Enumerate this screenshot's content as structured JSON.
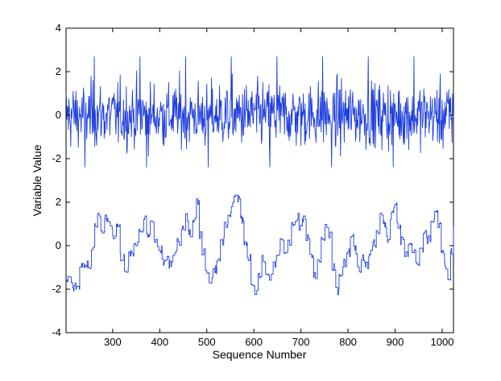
{
  "chart_data": {
    "type": "line",
    "title": "",
    "xlabel": "Sequence Number",
    "ylabel": "Variable Value",
    "xlim": [
      201,
      1024
    ],
    "ylim": [
      -4,
      4
    ],
    "x_ticks": [
      300,
      400,
      500,
      600,
      700,
      800,
      900,
      1000
    ],
    "y_ticks": [
      4,
      2,
      0,
      -2,
      2,
      0,
      -2,
      -4
    ],
    "grid": false,
    "legend": "none",
    "line_color": "#1f3fe0",
    "x": [
      201,
      1024
    ],
    "series": [
      {
        "kind": "noise",
        "offset": 0,
        "amplitude": 0.75,
        "clip": [
          -2.8,
          3.0
        ],
        "length": 824
      },
      {
        "kind": "piecewise-constant",
        "knots": [
          [
            201,
            -1.5
          ],
          [
            215,
            -1.9
          ],
          [
            230,
            -0.9
          ],
          [
            255,
            -0.2
          ],
          [
            262,
            1.0
          ],
          [
            268,
            1.4
          ],
          [
            275,
            0.6
          ],
          [
            283,
            1.3
          ],
          [
            292,
            0.9
          ],
          [
            300,
            0.4
          ],
          [
            308,
            0.8
          ],
          [
            316,
            -0.5
          ],
          [
            325,
            -1.1
          ],
          [
            334,
            -0.4
          ],
          [
            345,
            0.1
          ],
          [
            356,
            0.8
          ],
          [
            366,
            1.3
          ],
          [
            372,
            0.5
          ],
          [
            380,
            1.0
          ],
          [
            388,
            0.3
          ],
          [
            395,
            -0.2
          ],
          [
            405,
            -0.8
          ],
          [
            412,
            -0.6
          ],
          [
            420,
            -0.9
          ],
          [
            428,
            -0.4
          ],
          [
            437,
            0.2
          ],
          [
            446,
            0.9
          ],
          [
            455,
            1.3
          ],
          [
            461,
            0.6
          ],
          [
            470,
            1.1
          ],
          [
            478,
            2.0
          ],
          [
            484,
            0.5
          ],
          [
            490,
            -0.3
          ],
          [
            497,
            -1.1
          ],
          [
            505,
            -1.6
          ],
          [
            513,
            -1.1
          ],
          [
            521,
            -0.6
          ],
          [
            529,
            0.2
          ],
          [
            537,
            0.9
          ],
          [
            545,
            1.4
          ],
          [
            552,
            1.9
          ],
          [
            558,
            2.2
          ],
          [
            566,
            2.1
          ],
          [
            572,
            1.2
          ],
          [
            579,
            0.2
          ],
          [
            586,
            -0.6
          ],
          [
            594,
            -1.7
          ],
          [
            602,
            -2.2
          ],
          [
            609,
            -1.4
          ],
          [
            617,
            -0.6
          ],
          [
            625,
            -1.2
          ],
          [
            633,
            -1.5
          ],
          [
            641,
            -0.9
          ],
          [
            648,
            -0.3
          ],
          [
            656,
            0.3
          ],
          [
            664,
            -0.2
          ],
          [
            672,
            0.2
          ],
          [
            680,
            1.0
          ],
          [
            688,
            1.3
          ],
          [
            696,
            0.8
          ],
          [
            703,
            1.3
          ],
          [
            711,
            0.4
          ],
          [
            719,
            -0.5
          ],
          [
            727,
            -1.4
          ],
          [
            735,
            -0.7
          ],
          [
            743,
            0.3
          ],
          [
            751,
            1.0
          ],
          [
            759,
            0.5
          ],
          [
            766,
            -1.0
          ],
          [
            774,
            -2.1
          ],
          [
            781,
            -1.4
          ],
          [
            789,
            -0.8
          ],
          [
            797,
            -0.3
          ],
          [
            805,
            0.4
          ],
          [
            812,
            -0.2
          ],
          [
            820,
            -1.1
          ],
          [
            828,
            -0.6
          ],
          [
            836,
            -0.9
          ],
          [
            844,
            -0.4
          ],
          [
            852,
            0.1
          ],
          [
            860,
            0.7
          ],
          [
            868,
            1.4
          ],
          [
            875,
            1.0
          ],
          [
            882,
            0.3
          ],
          [
            890,
            1.4
          ],
          [
            897,
            1.8
          ],
          [
            904,
            0.9
          ],
          [
            912,
            0.2
          ],
          [
            920,
            -0.4
          ],
          [
            928,
            0.1
          ],
          [
            936,
            -0.3
          ],
          [
            944,
            -0.8
          ],
          [
            952,
            -0.2
          ],
          [
            960,
            0.5
          ],
          [
            968,
            0.3
          ],
          [
            976,
            1.1
          ],
          [
            984,
            1.6
          ],
          [
            991,
            1.0
          ],
          [
            998,
            -0.2
          ],
          [
            1005,
            -0.9
          ],
          [
            1012,
            -1.4
          ],
          [
            1018,
            -0.3
          ],
          [
            1024,
            0.9
          ]
        ],
        "noise": 0.2
      }
    ]
  }
}
